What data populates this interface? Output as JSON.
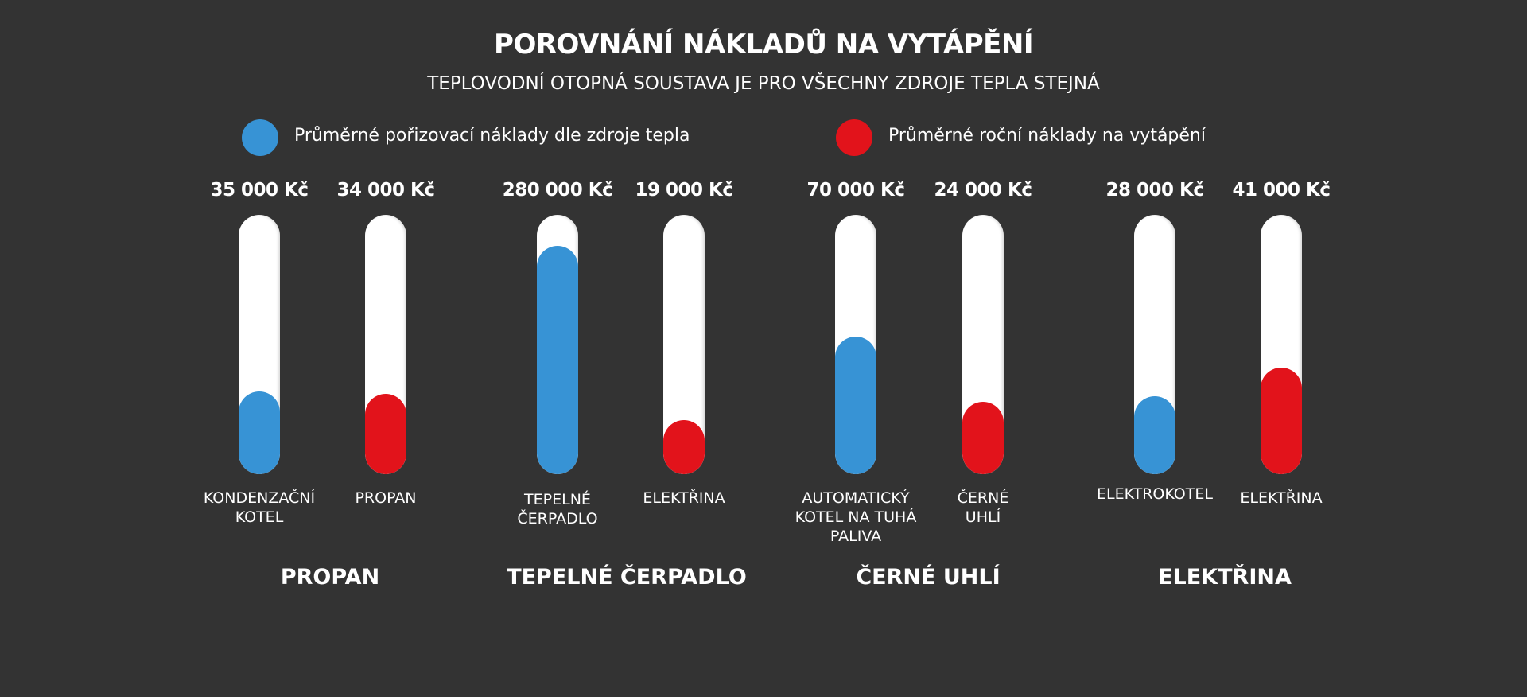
{
  "title": "POROVNÁNÍ NÁKLADŮ NA VYTÁPĚNÍ",
  "subtitle": "TEPLOVODNÍ OTOPNÁ SOUSTAVA JE PRO VŠECHNY ZDROJE TEPLA STEJNÁ",
  "legend": [
    {
      "label": "Průměrné pořizovací náklady dle zdroje tepla",
      "color": "#3793d5"
    },
    {
      "label": "Průměrné roční náklady na vytápění",
      "color": "#e2131b"
    }
  ],
  "chart_data": {
    "type": "bar",
    "title": "POROVNÁNÍ NÁKLADŮ NA VYTÁPĚNÍ",
    "subtitle": "TEPLOVODNÍ OTOPNÁ SOUSTAVA JE PRO VŠECHNY ZDROJE TEPLA STEJNÁ",
    "unit": "Kč",
    "groups": [
      "PROPAN",
      "TEPELNÉ ČERPADLO",
      "ČERNÉ UHLÍ",
      "ELEKTŘINA"
    ],
    "bars": [
      {
        "group": "PROPAN",
        "category": "KONDENZAČNÍ\nKOTEL",
        "series": "Průměrné pořizovací náklady dle zdroje tepla",
        "value": 35000,
        "value_label": "35 000 Kč",
        "fill_fraction": 0.32,
        "color": "#3793d5"
      },
      {
        "group": "PROPAN",
        "category": "PROPAN",
        "series": "Průměrné roční náklady na vytápění",
        "value": 34000,
        "value_label": "34 000 Kč",
        "fill_fraction": 0.31,
        "color": "#e2131b"
      },
      {
        "group": "TEPELNÉ ČERPADLO",
        "category": "TEPELNÉ\nČERPADLO",
        "series": "Průměrné pořizovací náklady dle zdroje tepla",
        "value": 280000,
        "value_label": "280 000 Kč",
        "fill_fraction": 0.88,
        "color": "#3793d5"
      },
      {
        "group": "TEPELNÉ ČERPADLO",
        "category": "ELEKTŘINA",
        "series": "Průměrné roční náklady na vytápění",
        "value": 19000,
        "value_label": "19 000 Kč",
        "fill_fraction": 0.21,
        "color": "#e2131b"
      },
      {
        "group": "ČERNÉ UHLÍ",
        "category": "AUTOMATICKÝ\nKOTEL NA TUHÁ\nPALIVA",
        "series": "Průměrné pořizovací náklady dle zdroje tepla",
        "value": 70000,
        "value_label": "70 000 Kč",
        "fill_fraction": 0.53,
        "color": "#3793d5"
      },
      {
        "group": "ČERNÉ UHLÍ",
        "category": "ČERNÉ\nUHLÍ",
        "series": "Průměrné roční náklady na vytápění",
        "value": 24000,
        "value_label": "24 000 Kč",
        "fill_fraction": 0.28,
        "color": "#e2131b"
      },
      {
        "group": "ELEKTŘINA",
        "category": "ELEKTROKOTEL",
        "series": "Průměrné pořizovací náklady dle zdroje tepla",
        "value": 28000,
        "value_label": "28 000 Kč",
        "fill_fraction": 0.3,
        "color": "#3793d5"
      },
      {
        "group": "ELEKTŘINA",
        "category": "ELEKTŘINA",
        "series": "Průměrné roční náklady na vytápění",
        "value": 41000,
        "value_label": "41 000 Kč",
        "fill_fraction": 0.41,
        "color": "#e2131b"
      }
    ]
  }
}
